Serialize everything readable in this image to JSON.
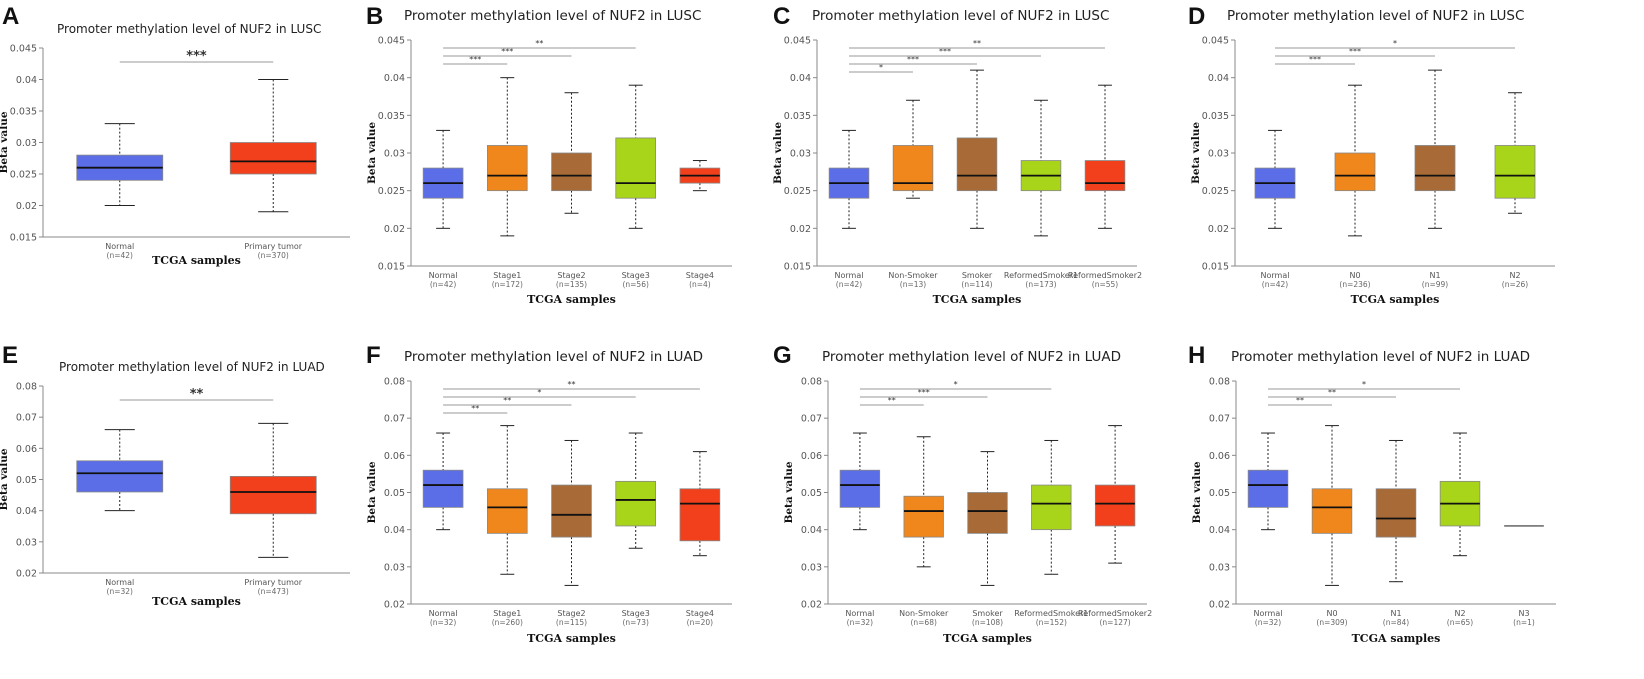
{
  "colors": {
    "Normal": "#5b6ee8",
    "Primary tumor": "#f2401c",
    "Stage1": "#f0871c",
    "Stage2": "#a86a36",
    "Stage3": "#a8d41a",
    "Stage4": "#f2401c",
    "Non-Smoker": "#f0871c",
    "Smoker": "#a86a36",
    "ReformedSmoker1": "#a8d41a",
    "ReformedSmoker2": "#f2401c",
    "N0": "#f0871c",
    "N1": "#a86a36",
    "N2": "#a8d41a",
    "N3": "#f2401c"
  },
  "chart_data": [
    {
      "panel": "A",
      "type": "boxplot",
      "title": "Promoter methylation level of NUF2 in LUSC",
      "xlabel": "TCGA samples",
      "ylabel": "Beta value",
      "ylim": [
        0.015,
        0.045
      ],
      "yticks": [
        "0.015",
        "0.02",
        "0.025",
        "0.03",
        "0.035",
        "0.04",
        "0.045"
      ],
      "categories": [
        "Normal",
        "Primary tumor"
      ],
      "counts": [
        "(n=42)",
        "(n=370)"
      ],
      "boxes": [
        {
          "min": 0.02,
          "q1": 0.024,
          "median": 0.026,
          "q3": 0.028,
          "max": 0.033
        },
        {
          "min": 0.019,
          "q1": 0.025,
          "median": 0.027,
          "q3": 0.03,
          "max": 0.04
        }
      ],
      "significance": [
        {
          "from": 0,
          "to": 1,
          "label": "***"
        }
      ]
    },
    {
      "panel": "B",
      "type": "boxplot",
      "title": "Promoter methylation level of NUF2 in LUSC",
      "xlabel": "TCGA samples",
      "ylabel": "Beta value",
      "ylim": [
        0.015,
        0.045
      ],
      "yticks": [
        "0.015",
        "0.02",
        "0.025",
        "0.03",
        "0.035",
        "0.04",
        "0.045"
      ],
      "categories": [
        "Normal",
        "Stage1",
        "Stage2",
        "Stage3",
        "Stage4"
      ],
      "counts": [
        "(n=42)",
        "(n=172)",
        "(n=135)",
        "(n=56)",
        "(n=4)"
      ],
      "boxes": [
        {
          "min": 0.02,
          "q1": 0.024,
          "median": 0.026,
          "q3": 0.028,
          "max": 0.033
        },
        {
          "min": 0.019,
          "q1": 0.025,
          "median": 0.027,
          "q3": 0.031,
          "max": 0.04
        },
        {
          "min": 0.022,
          "q1": 0.025,
          "median": 0.027,
          "q3": 0.03,
          "max": 0.038
        },
        {
          "min": 0.02,
          "q1": 0.024,
          "median": 0.026,
          "q3": 0.032,
          "max": 0.039
        },
        {
          "min": 0.025,
          "q1": 0.026,
          "median": 0.027,
          "q3": 0.028,
          "max": 0.029
        }
      ],
      "significance": [
        {
          "from": 0,
          "to": 1,
          "label": "***"
        },
        {
          "from": 0,
          "to": 2,
          "label": "***"
        },
        {
          "from": 0,
          "to": 3,
          "label": "**"
        }
      ]
    },
    {
      "panel": "C",
      "type": "boxplot",
      "title": "Promoter methylation level of NUF2 in LUSC",
      "xlabel": "TCGA samples",
      "ylabel": "Beta value",
      "ylim": [
        0.015,
        0.045
      ],
      "yticks": [
        "0.015",
        "0.02",
        "0.025",
        "0.03",
        "0.035",
        "0.04",
        "0.045"
      ],
      "categories": [
        "Normal",
        "Non-Smoker",
        "Smoker",
        "ReformedSmoker1",
        "ReformedSmoker2"
      ],
      "counts": [
        "(n=42)",
        "(n=13)",
        "(n=114)",
        "(n=173)",
        "(n=55)"
      ],
      "boxes": [
        {
          "min": 0.02,
          "q1": 0.024,
          "median": 0.026,
          "q3": 0.028,
          "max": 0.033
        },
        {
          "min": 0.024,
          "q1": 0.025,
          "median": 0.026,
          "q3": 0.031,
          "max": 0.037
        },
        {
          "min": 0.02,
          "q1": 0.025,
          "median": 0.027,
          "q3": 0.032,
          "max": 0.041
        },
        {
          "min": 0.019,
          "q1": 0.025,
          "median": 0.027,
          "q3": 0.029,
          "max": 0.037
        },
        {
          "min": 0.02,
          "q1": 0.025,
          "median": 0.026,
          "q3": 0.029,
          "max": 0.039
        }
      ],
      "significance": [
        {
          "from": 0,
          "to": 1,
          "label": "*"
        },
        {
          "from": 0,
          "to": 2,
          "label": "***"
        },
        {
          "from": 0,
          "to": 3,
          "label": "***"
        },
        {
          "from": 0,
          "to": 4,
          "label": "**"
        }
      ]
    },
    {
      "panel": "D",
      "type": "boxplot",
      "title": "Promoter methylation level of NUF2 in LUSC",
      "xlabel": "TCGA samples",
      "ylabel": "Beta value",
      "ylim": [
        0.015,
        0.045
      ],
      "yticks": [
        "0.015",
        "0.02",
        "0.025",
        "0.03",
        "0.035",
        "0.04",
        "0.045"
      ],
      "categories": [
        "Normal",
        "N0",
        "N1",
        "N2"
      ],
      "counts": [
        "(n=42)",
        "(n=236)",
        "(n=99)",
        "(n=26)"
      ],
      "boxes": [
        {
          "min": 0.02,
          "q1": 0.024,
          "median": 0.026,
          "q3": 0.028,
          "max": 0.033
        },
        {
          "min": 0.019,
          "q1": 0.025,
          "median": 0.027,
          "q3": 0.03,
          "max": 0.039
        },
        {
          "min": 0.02,
          "q1": 0.025,
          "median": 0.027,
          "q3": 0.031,
          "max": 0.041
        },
        {
          "min": 0.022,
          "q1": 0.024,
          "median": 0.027,
          "q3": 0.031,
          "max": 0.038
        }
      ],
      "significance": [
        {
          "from": 0,
          "to": 1,
          "label": "***"
        },
        {
          "from": 0,
          "to": 2,
          "label": "***"
        },
        {
          "from": 0,
          "to": 3,
          "label": "*"
        }
      ]
    },
    {
      "panel": "E",
      "type": "boxplot",
      "title": "Promoter methylation level of NUF2 in LUAD",
      "xlabel": "TCGA samples",
      "ylabel": "Beta value",
      "ylim": [
        0.02,
        0.08
      ],
      "yticks": [
        "0.02",
        "0.03",
        "0.04",
        "0.05",
        "0.06",
        "0.07",
        "0.08"
      ],
      "categories": [
        "Normal",
        "Primary tumor"
      ],
      "counts": [
        "(n=32)",
        "(n=473)"
      ],
      "boxes": [
        {
          "min": 0.04,
          "q1": 0.046,
          "median": 0.052,
          "q3": 0.056,
          "max": 0.066
        },
        {
          "min": 0.025,
          "q1": 0.039,
          "median": 0.046,
          "q3": 0.051,
          "max": 0.068
        }
      ],
      "significance": [
        {
          "from": 0,
          "to": 1,
          "label": "**"
        }
      ]
    },
    {
      "panel": "F",
      "type": "boxplot",
      "title": "Promoter methylation level of NUF2 in LUAD",
      "xlabel": "TCGA samples",
      "ylabel": "Beta value",
      "ylim": [
        0.02,
        0.08
      ],
      "yticks": [
        "0.02",
        "0.03",
        "0.04",
        "0.05",
        "0.06",
        "0.07",
        "0.08"
      ],
      "categories": [
        "Normal",
        "Stage1",
        "Stage2",
        "Stage3",
        "Stage4"
      ],
      "counts": [
        "(n=32)",
        "(n=260)",
        "(n=115)",
        "(n=73)",
        "(n=20)"
      ],
      "boxes": [
        {
          "min": 0.04,
          "q1": 0.046,
          "median": 0.052,
          "q3": 0.056,
          "max": 0.066
        },
        {
          "min": 0.028,
          "q1": 0.039,
          "median": 0.046,
          "q3": 0.051,
          "max": 0.068
        },
        {
          "min": 0.025,
          "q1": 0.038,
          "median": 0.044,
          "q3": 0.052,
          "max": 0.064
        },
        {
          "min": 0.035,
          "q1": 0.041,
          "median": 0.048,
          "q3": 0.053,
          "max": 0.066
        },
        {
          "min": 0.033,
          "q1": 0.037,
          "median": 0.047,
          "q3": 0.051,
          "max": 0.061
        }
      ],
      "significance": [
        {
          "from": 0,
          "to": 1,
          "label": "**"
        },
        {
          "from": 0,
          "to": 2,
          "label": "**"
        },
        {
          "from": 0,
          "to": 3,
          "label": "*"
        },
        {
          "from": 0,
          "to": 4,
          "label": "**"
        }
      ]
    },
    {
      "panel": "G",
      "type": "boxplot",
      "title": "Promoter methylation level of NUF2 in LUAD",
      "xlabel": "TCGA samples",
      "ylabel": "Beta value",
      "ylim": [
        0.02,
        0.08
      ],
      "yticks": [
        "0.02",
        "0.03",
        "0.04",
        "0.05",
        "0.06",
        "0.07",
        "0.08"
      ],
      "categories": [
        "Normal",
        "Non-Smoker",
        "Smoker",
        "ReformedSmoker1",
        "ReformedSmoker2"
      ],
      "counts": [
        "(n=32)",
        "(n=68)",
        "(n=108)",
        "(n=152)",
        "(n=127)"
      ],
      "boxes": [
        {
          "min": 0.04,
          "q1": 0.046,
          "median": 0.052,
          "q3": 0.056,
          "max": 0.066
        },
        {
          "min": 0.03,
          "q1": 0.038,
          "median": 0.045,
          "q3": 0.049,
          "max": 0.065
        },
        {
          "min": 0.025,
          "q1": 0.039,
          "median": 0.045,
          "q3": 0.05,
          "max": 0.061
        },
        {
          "min": 0.028,
          "q1": 0.04,
          "median": 0.047,
          "q3": 0.052,
          "max": 0.064
        },
        {
          "min": 0.031,
          "q1": 0.041,
          "median": 0.047,
          "q3": 0.052,
          "max": 0.068
        }
      ],
      "significance": [
        {
          "from": 0,
          "to": 1,
          "label": "**"
        },
        {
          "from": 0,
          "to": 2,
          "label": "***"
        },
        {
          "from": 0,
          "to": 3,
          "label": "*"
        }
      ]
    },
    {
      "panel": "H",
      "type": "boxplot",
      "title": "Promoter methylation level of NUF2 in LUAD",
      "xlabel": "TCGA samples",
      "ylabel": "Beta value",
      "ylim": [
        0.02,
        0.08
      ],
      "yticks": [
        "0.02",
        "0.03",
        "0.04",
        "0.05",
        "0.06",
        "0.07",
        "0.08"
      ],
      "categories": [
        "Normal",
        "N0",
        "N1",
        "N2",
        "N3"
      ],
      "counts": [
        "(n=32)",
        "(n=309)",
        "(n=84)",
        "(n=65)",
        "(n=1)"
      ],
      "boxes": [
        {
          "min": 0.04,
          "q1": 0.046,
          "median": 0.052,
          "q3": 0.056,
          "max": 0.066
        },
        {
          "min": 0.025,
          "q1": 0.039,
          "median": 0.046,
          "q3": 0.051,
          "max": 0.068
        },
        {
          "min": 0.026,
          "q1": 0.038,
          "median": 0.043,
          "q3": 0.051,
          "max": 0.064
        },
        {
          "min": 0.033,
          "q1": 0.041,
          "median": 0.047,
          "q3": 0.053,
          "max": 0.066
        },
        {
          "min": 0.041,
          "q1": 0.041,
          "median": 0.041,
          "q3": 0.041,
          "max": 0.041
        }
      ],
      "significance": [
        {
          "from": 0,
          "to": 1,
          "label": "**"
        },
        {
          "from": 0,
          "to": 2,
          "label": "**"
        },
        {
          "from": 0,
          "to": 3,
          "label": "*"
        }
      ]
    }
  ]
}
